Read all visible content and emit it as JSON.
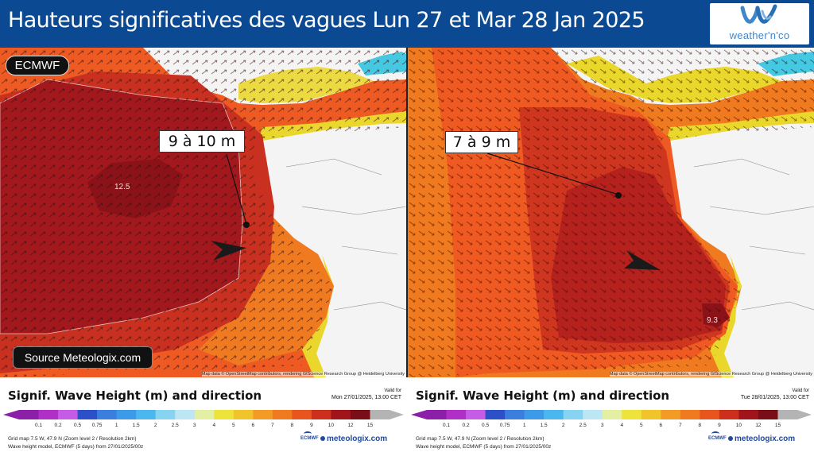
{
  "header": {
    "title": "Hauteurs significatives des vagues Lun 27 et Mar 28 Jan 2025",
    "logo_text": "weather'n'co"
  },
  "colors": {
    "header_bg": "#0b4a92",
    "sea_orange": "#ee5a22",
    "sea_red": "#c9301f",
    "sea_darkred": "#a3181d",
    "sea_maroon": "#8a1218",
    "sea_lightorange": "#f07a1f",
    "coast_yellow": "#ead72c",
    "coast_cyan": "#45c8e2",
    "land": "#f4f4f4"
  },
  "left_panel": {
    "model_badge": "ECMWF",
    "callout": "9 à 10 m",
    "max_label": "12.5",
    "source": "Source Meteologix.com",
    "attribution": "Map data © OpenStreetMap contributors, rendering GIScience Research Group @ Heidelberg University",
    "legend": {
      "title": "Signif. Wave Height (m) and direction",
      "valid_for": "Valid for",
      "valid_date": "Mon 27/01/2025, 13:00 CET",
      "grid_info": "Grid map 7.5 W, 47.9 N  (Zoom level 2 / Resolution 2km)",
      "model_info": "Wave height model, ECMWF (5 days)  from  27/01/2025/00z",
      "ecmwf": "ECMWF",
      "meteologix": "meteologix.com"
    }
  },
  "right_panel": {
    "callout": "7 à 9 m",
    "max_label": "9.3",
    "attribution": "Map data © OpenStreetMap contributors, rendering GIScience Research Group @ Heidelberg University",
    "legend": {
      "title": "Signif. Wave Height (m) and direction",
      "valid_for": "Valid for",
      "valid_date": "Tue 28/01/2025, 13:00 CET",
      "grid_info": "Grid map 7.5 W, 47.9 N  (Zoom level 2 / Resolution 2km)",
      "model_info": "Wave height model, ECMWF (5 days)  from  27/01/2025/00z",
      "ecmwf": "ECMWF",
      "meteologix": "meteologix.com"
    }
  },
  "scale": {
    "ticks": [
      "0.1",
      "0.2",
      "0.5",
      "0.75",
      "1",
      "1.5",
      "2",
      "2.5",
      "3",
      "4",
      "5",
      "6",
      "7",
      "8",
      "9",
      "10",
      "12",
      "15"
    ],
    "colors": [
      "#8b1fa8",
      "#b02fc7",
      "#c65ce6",
      "#2c50c8",
      "#3a7fe0",
      "#3d9ae8",
      "#4cb6ef",
      "#86d3f2",
      "#bde6f5",
      "#e3f0a4",
      "#eee33a",
      "#f2c42c",
      "#f39b25",
      "#ef7a1f",
      "#e8551e",
      "#cc301c",
      "#a0141c",
      "#7a0e16",
      "#b4b4b4"
    ]
  }
}
